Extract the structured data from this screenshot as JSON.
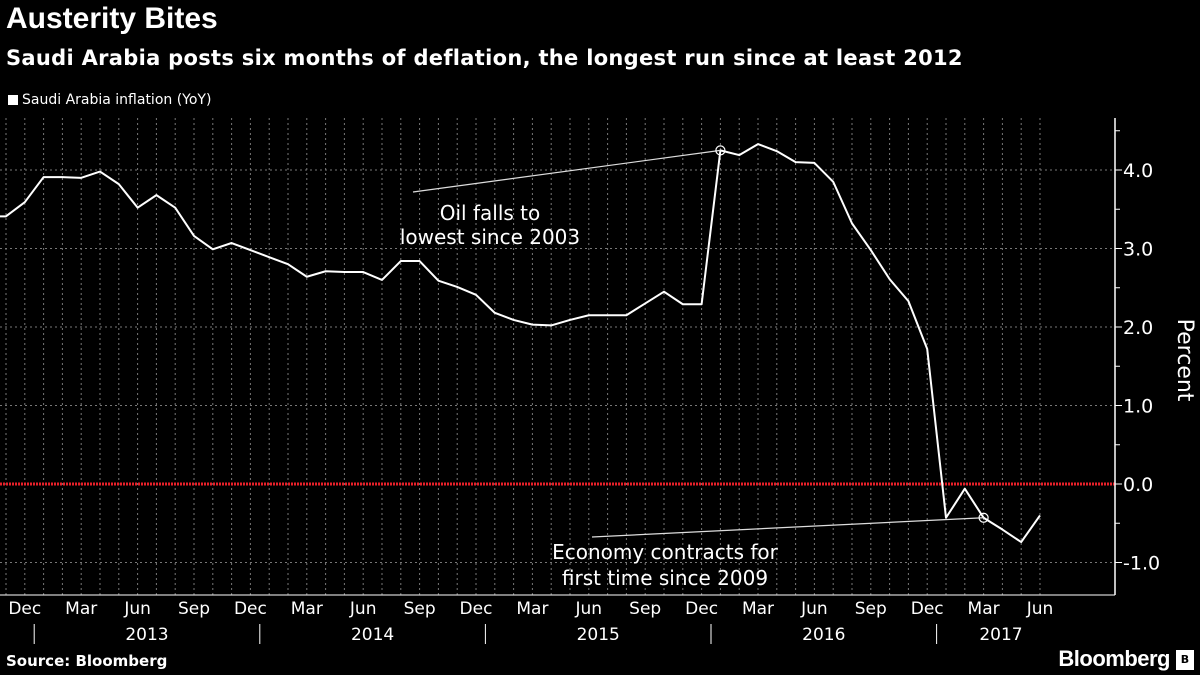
{
  "header": {
    "title": "Austerity Bites",
    "subtitle": "Saudi Arabia posts six months of deflation, the longest run since at least 2012"
  },
  "footer": {
    "source": "Source: Bloomberg",
    "logo": "Bloomberg"
  },
  "chart_data": {
    "type": "line",
    "title": "Austerity Bites",
    "subtitle": "Saudi Arabia posts six months of deflation, the longest run since at least 2012",
    "ylabel": "Percent",
    "xlabel": "",
    "ylim": [
      -1.3,
      4.65
    ],
    "yticks": [
      -1.0,
      0.0,
      1.0,
      2.0,
      3.0,
      4.0
    ],
    "ytick_labels": [
      "-1.0",
      "0.0",
      "1.0",
      "2.0",
      "3.0",
      "4.0"
    ],
    "grid": true,
    "legend_placement": "top-left",
    "reference_line": {
      "value": 0.0,
      "color": "#e8202a"
    },
    "x_start": "2012-11",
    "x_end": "2017-06",
    "month_tick_labels": [
      "Dec",
      "Mar",
      "Jun",
      "Sep",
      "Dec",
      "Mar",
      "Jun",
      "Sep",
      "Dec",
      "Mar",
      "Jun",
      "Sep",
      "Dec",
      "Mar",
      "Jun",
      "Sep",
      "Dec",
      "Mar",
      "Jun"
    ],
    "year_labels": [
      "2013",
      "2014",
      "2015",
      "2016",
      "2017"
    ],
    "series": [
      {
        "name": "Saudi Arabia inflation (YoY)",
        "color": "#ffffff",
        "values": [
          3.41,
          3.59,
          3.91,
          3.91,
          3.9,
          3.98,
          3.82,
          3.52,
          3.68,
          3.52,
          3.16,
          2.99,
          3.07,
          2.98,
          2.89,
          2.8,
          2.64,
          2.71,
          2.7,
          2.7,
          2.6,
          2.84,
          2.84,
          2.59,
          2.51,
          2.41,
          2.18,
          2.09,
          2.03,
          2.02,
          2.09,
          2.15,
          2.15,
          2.15,
          2.3,
          2.45,
          2.29,
          2.29,
          4.25,
          4.19,
          4.33,
          4.24,
          4.1,
          4.09,
          3.85,
          3.32,
          2.98,
          2.61,
          2.33,
          1.72,
          -0.43,
          -0.06,
          -0.43,
          -0.58,
          -0.74,
          -0.4
        ]
      }
    ],
    "annotations": [
      {
        "lines": [
          "Oil falls to",
          "lowest since 2003"
        ],
        "point_index": 38
      },
      {
        "lines": [
          "Economy contracts for",
          "first time since 2009"
        ],
        "point_index": 52
      }
    ]
  }
}
